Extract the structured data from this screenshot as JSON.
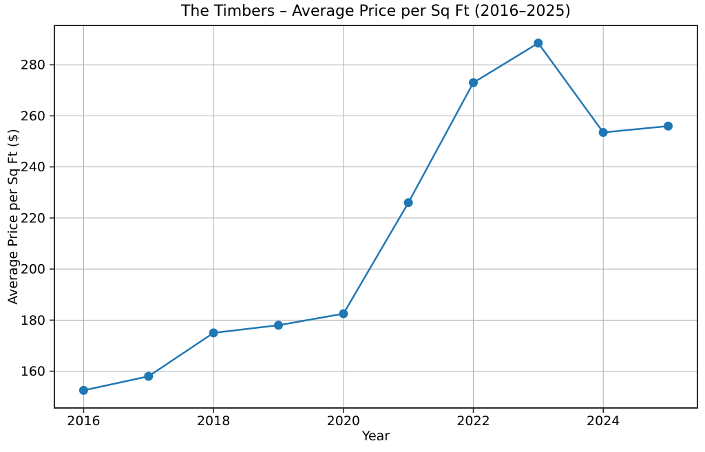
{
  "chart_data": {
    "type": "line",
    "title": "The Timbers – Average Price per Sq Ft (2016–2025)",
    "xlabel": "Year",
    "ylabel": "Average Price per Sq Ft ($)",
    "series": [
      {
        "name": "Average Price per Sq Ft ($)",
        "x": [
          2016,
          2017,
          2018,
          2019,
          2020,
          2021,
          2022,
          2023,
          2024,
          2025
        ],
        "y": [
          152.5,
          158,
          175,
          178,
          182.5,
          226,
          273,
          288.5,
          253.5,
          256
        ]
      }
    ],
    "xticks": [
      2016,
      2018,
      2020,
      2022,
      2024
    ],
    "yticks": [
      160,
      180,
      200,
      220,
      240,
      260,
      280
    ],
    "xlim": [
      2015.55,
      2025.45
    ],
    "ylim": [
      145.6,
      295.4
    ],
    "grid": true,
    "legend": false,
    "colors": {
      "line": "#1f77b4",
      "marker": "#1f77b4",
      "grid": "#b0b0b0",
      "spine": "#2b2b2b",
      "tick": "#2b2b2b",
      "text": "#000000",
      "background": "#ffffff"
    }
  }
}
